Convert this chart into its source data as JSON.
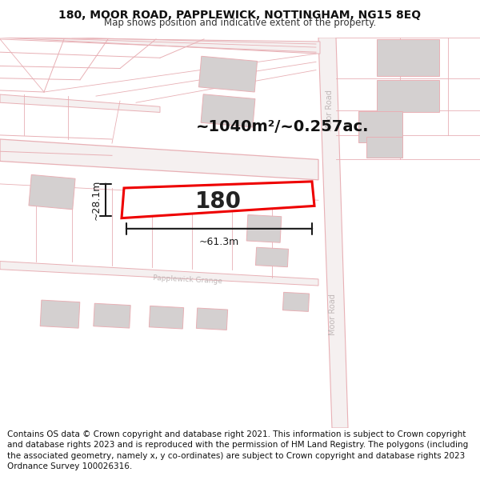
{
  "title_line1": "180, MOOR ROAD, PAPPLEWICK, NOTTINGHAM, NG15 8EQ",
  "title_line2": "Map shows position and indicative extent of the property.",
  "footer_text": "Contains OS data © Crown copyright and database right 2021. This information is subject to Crown copyright and database rights 2023 and is reproduced with the permission of HM Land Registry. The polygons (including the associated geometry, namely x, y co-ordinates) are subject to Crown copyright and database rights 2023 Ordnance Survey 100026316.",
  "map_bg": "#faf6f6",
  "road_color": "#e8b0b5",
  "building_color": "#d4d0d0",
  "highlight_color": "#ee0000",
  "area_text": "~1040m²/~0.257ac.",
  "property_label": "180",
  "dim_width": "~61.3m",
  "dim_height": "~28.1m",
  "title_fontsize": 10,
  "footer_fontsize": 7.5,
  "road_label_color": "#c0b8b8",
  "moor_road_label": "Moor Road",
  "papplewick_label": "Papplewick Grange"
}
